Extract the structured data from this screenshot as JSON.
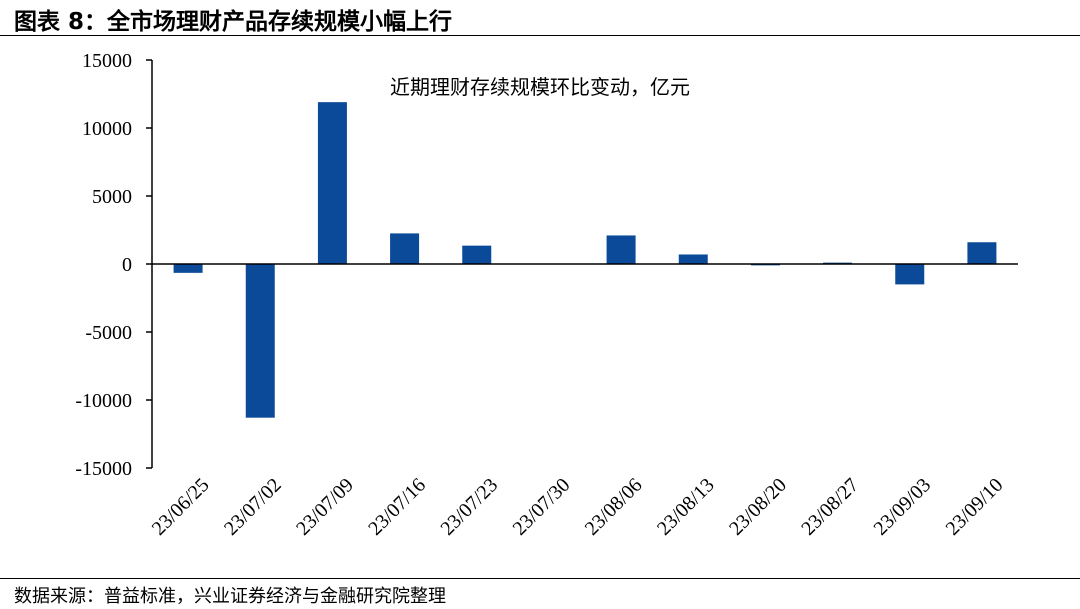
{
  "page": {
    "title": "图表 8：全市场理财产品存续规模小幅上行",
    "source": "数据来源：普益标准，兴业证券经济与金融研究院整理"
  },
  "chart_data": {
    "type": "bar",
    "title": "近期理财存续规模环比变动，亿元",
    "categories": [
      "23/06/25",
      "23/07/02",
      "23/07/09",
      "23/07/16",
      "23/07/23",
      "23/07/30",
      "23/08/06",
      "23/08/13",
      "23/08/20",
      "23/08/27",
      "23/09/03",
      "23/09/10"
    ],
    "values": [
      -650,
      -11300,
      11900,
      2250,
      1350,
      0,
      2100,
      700,
      -100,
      100,
      -1500,
      1600
    ],
    "ylim": [
      -15000,
      15000
    ],
    "yticks": [
      15000,
      10000,
      5000,
      0,
      -5000,
      -10000,
      -15000
    ],
    "ytick_labels": [
      "15000",
      "10000",
      "5000",
      "0",
      "-5000",
      "-10000",
      "-15000"
    ],
    "bar_color": "#0b4a99",
    "grid": false,
    "legend": "none"
  }
}
